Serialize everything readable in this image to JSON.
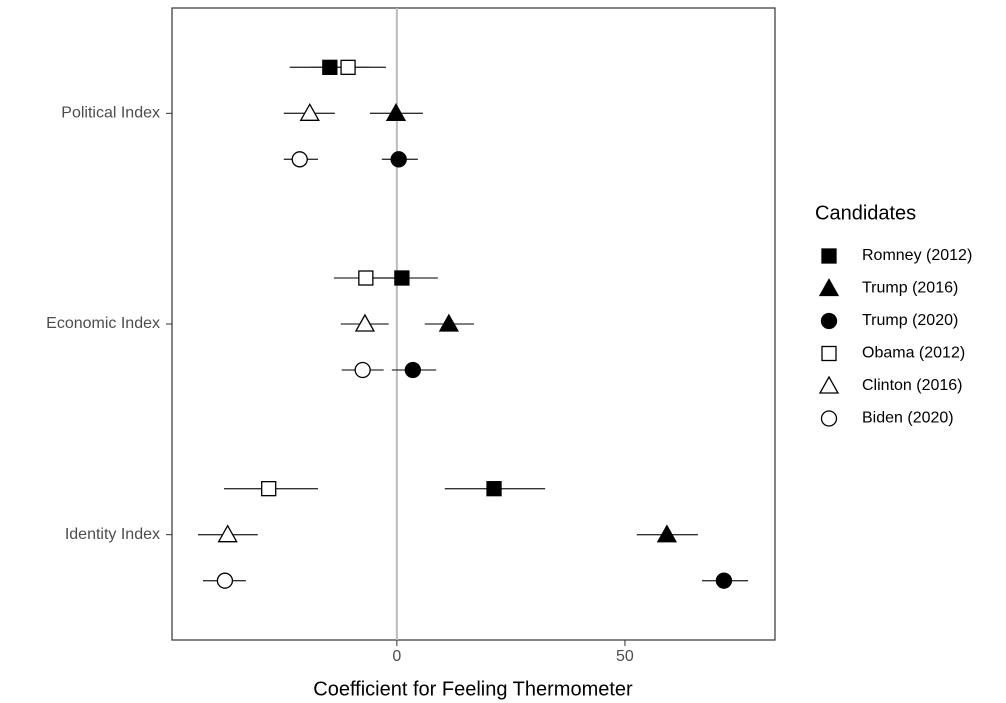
{
  "chart_data": {
    "type": "dot-errorbar",
    "x_label": "Coefficient for Feeling Thermometer",
    "categories": [
      "Political Index",
      "Economic Index",
      "Identity Index"
    ],
    "xlim": [
      -49.3,
      82.9
    ],
    "xticks": [
      0,
      50
    ],
    "reference_line": 0,
    "grid": false,
    "legend_title": "Candidates",
    "legend_position": "right",
    "series": [
      {
        "name": "Romney (2012)",
        "shape": "square",
        "filled": true,
        "color": "#000000",
        "values": [
          -14.7,
          1.1,
          21.3
        ],
        "lower": [
          -23.5,
          -6.0,
          10.5
        ],
        "upper": [
          -6.0,
          9.0,
          32.5
        ]
      },
      {
        "name": "Trump (2016)",
        "shape": "triangle",
        "filled": true,
        "color": "#000000",
        "values": [
          -0.2,
          11.4,
          59.2
        ],
        "lower": [
          -5.9,
          6.1,
          52.6
        ],
        "upper": [
          5.7,
          16.9,
          66.0
        ]
      },
      {
        "name": "Trump (2020)",
        "shape": "circle",
        "filled": true,
        "color": "#000000",
        "values": [
          0.4,
          3.5,
          71.7
        ],
        "lower": [
          -3.3,
          -1.1,
          66.9
        ],
        "upper": [
          4.6,
          8.6,
          77.0
        ]
      },
      {
        "name": "Obama (2012)",
        "shape": "square",
        "filled": false,
        "color": "#000000",
        "values": [
          -10.7,
          -6.8,
          -28.1
        ],
        "lower": [
          -19.0,
          -13.8,
          -37.9
        ],
        "upper": [
          -2.4,
          0.0,
          -17.3
        ]
      },
      {
        "name": "Clinton (2016)",
        "shape": "triangle",
        "filled": false,
        "color": "#000000",
        "values": [
          -19.1,
          -7.0,
          -37.1
        ],
        "lower": [
          -24.8,
          -12.3,
          -43.6
        ],
        "upper": [
          -13.6,
          -1.8,
          -30.5
        ]
      },
      {
        "name": "Biden (2020)",
        "shape": "circle",
        "filled": false,
        "color": "#000000",
        "values": [
          -21.3,
          -7.5,
          -37.7
        ],
        "lower": [
          -24.8,
          -12.1,
          -42.5
        ],
        "upper": [
          -17.3,
          -2.9,
          -33.1
        ]
      }
    ]
  }
}
